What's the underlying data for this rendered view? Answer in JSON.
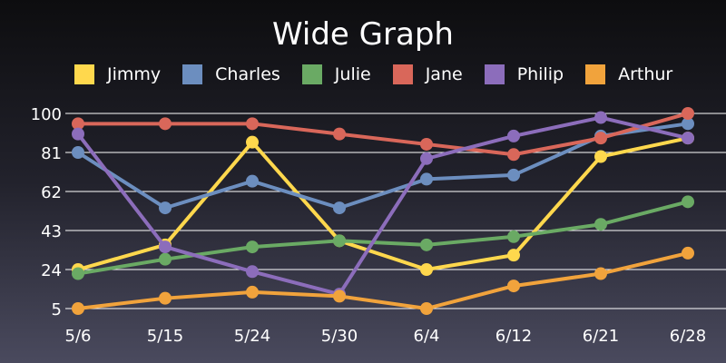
{
  "chart_data": {
    "type": "line",
    "title": "Wide Graph",
    "xlabel": "",
    "ylabel": "",
    "categories": [
      "5/6",
      "5/15",
      "5/24",
      "5/30",
      "6/4",
      "6/12",
      "6/21",
      "6/28"
    ],
    "y_ticks": [
      5,
      24,
      43,
      62,
      81,
      100
    ],
    "ylim": [
      5,
      100
    ],
    "grid": true,
    "legend_position": "top",
    "series": [
      {
        "name": "Jimmy",
        "color": "#ffd84d",
        "values": [
          24,
          36,
          86,
          38,
          24,
          31,
          79,
          88
        ]
      },
      {
        "name": "Charles",
        "color": "#6c8ebf",
        "values": [
          81,
          54,
          67,
          54,
          68,
          70,
          89,
          95
        ]
      },
      {
        "name": "Julie",
        "color": "#6aaa64",
        "values": [
          22,
          29,
          35,
          38,
          36,
          40,
          46,
          57
        ]
      },
      {
        "name": "Jane",
        "color": "#d9675a",
        "values": [
          95,
          95,
          95,
          90,
          85,
          80,
          88,
          100
        ]
      },
      {
        "name": "Philip",
        "color": "#8c6dbb",
        "values": [
          90,
          35,
          23,
          12,
          78,
          89,
          98,
          88
        ]
      },
      {
        "name": "Arthur",
        "color": "#f1a33c",
        "values": [
          5,
          10,
          13,
          11,
          5,
          16,
          22,
          32
        ]
      }
    ]
  }
}
